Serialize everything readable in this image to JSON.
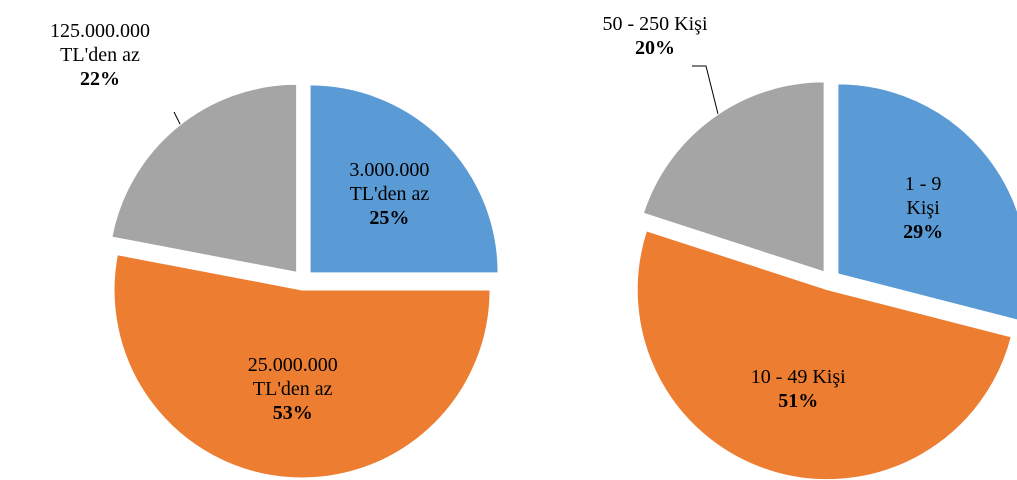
{
  "chart_data": [
    {
      "type": "pie",
      "categories": [
        "3.000.000 TL'den az",
        "25.000.000 TL'den az",
        "125.000.000 TL'den az"
      ],
      "values": [
        25,
        53,
        22
      ],
      "value_labels": [
        "25%",
        "53%",
        "22%"
      ],
      "colors": [
        "#5b9bd5",
        "#ed7d31",
        "#a5a5a5"
      ]
    },
    {
      "type": "pie",
      "categories": [
        "1 - 9 Kişi",
        "10 - 49 Kişi",
        "50 - 250 Kişi"
      ],
      "values": [
        29,
        51,
        20
      ],
      "value_labels": [
        "29%",
        "51%",
        "20%"
      ],
      "colors": [
        "#5b9bd5",
        "#ed7d31",
        "#a5a5a5"
      ]
    }
  ]
}
